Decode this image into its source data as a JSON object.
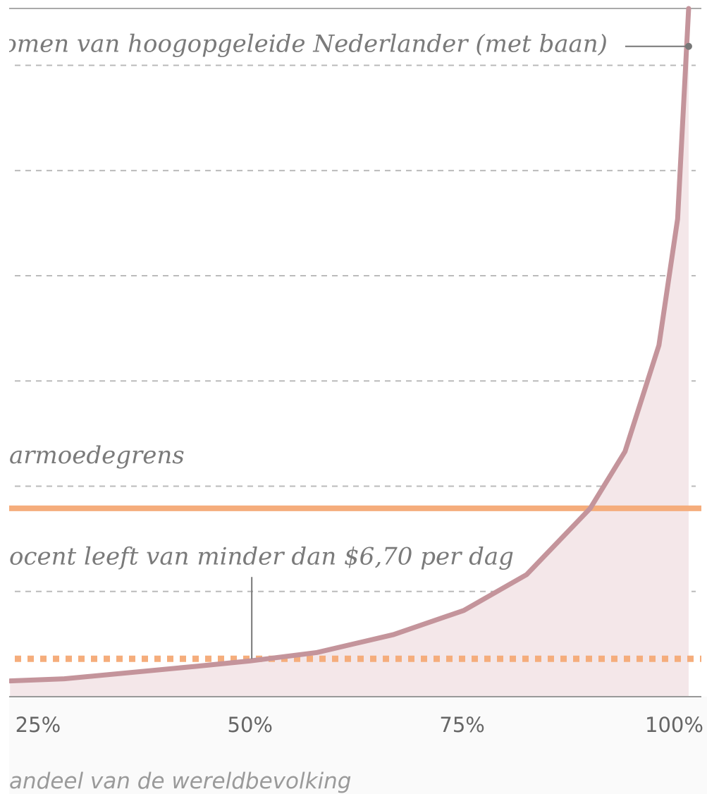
{
  "chart_data": {
    "type": "line",
    "xlabel": "andeel van de wereldbevolking",
    "xlim": [
      21.6,
      103.2
    ],
    "xticks": [
      {
        "value": 25,
        "label": "25%"
      },
      {
        "value": 50,
        "label": "50%"
      },
      {
        "value": 75,
        "label": "75%"
      },
      {
        "value": 100,
        "label": "100%"
      }
    ],
    "ylim": [
      0,
      6.54
    ],
    "grid_lines": [
      1,
      2,
      3,
      4,
      5,
      6
    ],
    "series": [
      {
        "color": "#c4949b",
        "fill": "#f4e7e9",
        "x": [
          21.7,
          28.1,
          43.8,
          50,
          57.9,
          66.9,
          75.2,
          82.6,
          90.1,
          94.2,
          98.2,
          100.4,
          101.7
        ],
        "values": [
          0.15,
          0.17,
          0.29,
          0.34,
          0.42,
          0.59,
          0.82,
          1.16,
          1.79,
          2.33,
          3.34,
          4.54,
          6.54
        ]
      }
    ],
    "reference_lines": [
      {
        "value": 1.79,
        "color": "#f5ad7c",
        "style": "solid"
      },
      {
        "value": 0.36,
        "color": "#f5ad7c",
        "style": "dotted"
      }
    ],
    "annotations": [
      {
        "text": "omen van hoogopgeleide Nederlander (met baan)",
        "x": 101.7,
        "y": 6.18
      },
      {
        "text": "armoedegrens"
      },
      {
        "text": "ocent leeft van minder dan $6,70 per dag",
        "x": 50.2,
        "y": 0.36
      }
    ]
  }
}
